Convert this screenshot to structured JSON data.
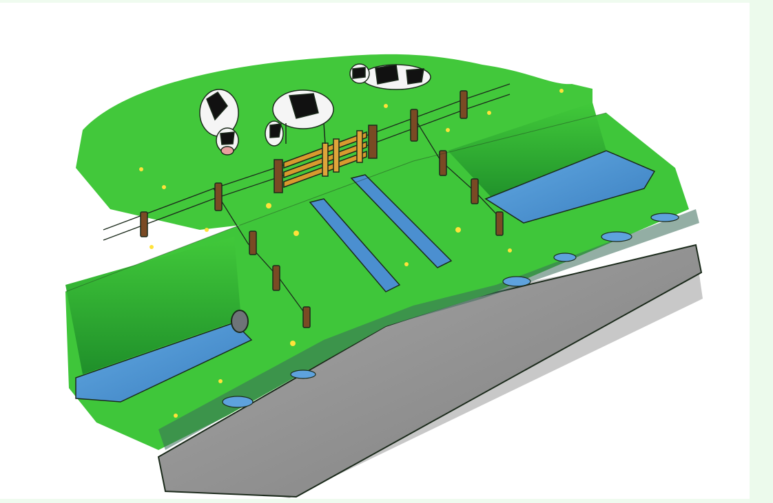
{
  "scene": {
    "subject": "pasture-with-fence-ditches-and-road",
    "elements": [
      "cow",
      "cow",
      "cow",
      "wooden-gate",
      "fence",
      "ditch",
      "drainage-pipe",
      "road",
      "puddles",
      "dandelions"
    ],
    "colors": {
      "grass": "#3fc63a",
      "grass_dark": "#1f9a2c",
      "water": "#4d9ad8",
      "water_light": "#9fd0f2",
      "road": "#8f8f8f",
      "road_shadow": "#bdbdbd",
      "post": "#7a4a24",
      "gate": "#d89a2e",
      "flower": "#ffe23a",
      "outline": "#1b2a1b",
      "frame_bg": "#effbef"
    }
  }
}
